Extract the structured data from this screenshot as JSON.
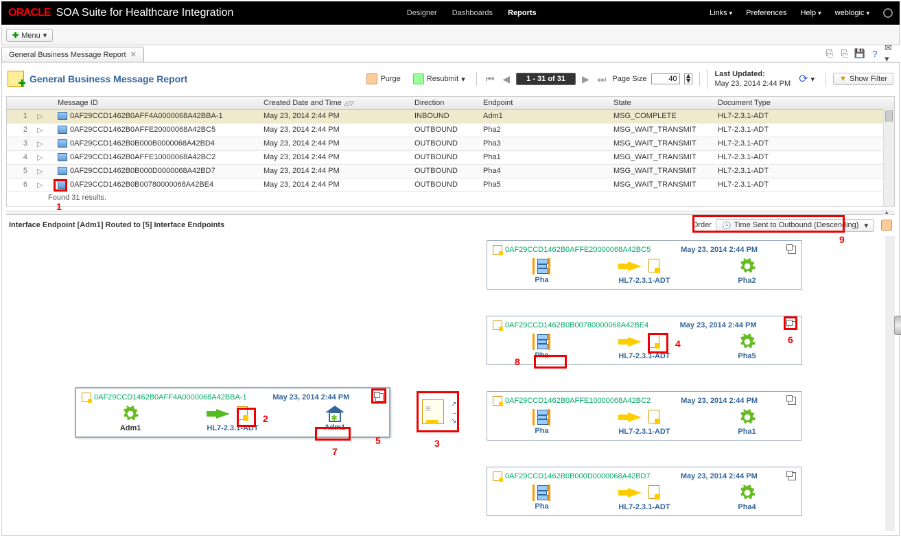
{
  "brand": {
    "logo": "ORACLE",
    "suite": "SOA Suite for Healthcare Integration"
  },
  "topnav": {
    "designer": "Designer",
    "dashboards": "Dashboards",
    "reports": "Reports"
  },
  "topright": {
    "links": "Links",
    "preferences": "Preferences",
    "help": "Help",
    "user": "weblogic"
  },
  "menu": {
    "label": "Menu"
  },
  "tab": {
    "title": "General Business Message Report"
  },
  "report": {
    "title": "General Business Message Report"
  },
  "toolbar": {
    "purge": "Purge",
    "resubmit": "Resubmit",
    "pageRange": "1 - 31 of 31",
    "pageSizeLabel": "Page Size",
    "pageSize": "40",
    "lastUpdatedLabel": "Last Updated:",
    "lastUpdated": "May 23, 2014 2:44 PM",
    "showFilter": "Show Filter"
  },
  "columns": {
    "msgId": "Message ID",
    "created": "Created Date and Time",
    "direction": "Direction",
    "endpoint": "Endpoint",
    "state": "State",
    "docType": "Document Type"
  },
  "rows": [
    {
      "n": "1",
      "id": "0AF29CCD1462B0AFF4A0000068A42BBA-1",
      "created": "May 23, 2014 2:44 PM",
      "dir": "INBOUND",
      "ep": "Adm1",
      "state": "MSG_COMPLETE",
      "doc": "HL7-2.3.1-ADT"
    },
    {
      "n": "2",
      "id": "0AF29CCD1462B0AFFE20000068A42BC5",
      "created": "May 23, 2014 2:44 PM",
      "dir": "OUTBOUND",
      "ep": "Pha2",
      "state": "MSG_WAIT_TRANSMIT",
      "doc": "HL7-2.3.1-ADT"
    },
    {
      "n": "3",
      "id": "0AF29CCD1462B0B000B0000068A42BD4",
      "created": "May 23, 2014 2:44 PM",
      "dir": "OUTBOUND",
      "ep": "Pha3",
      "state": "MSG_WAIT_TRANSMIT",
      "doc": "HL7-2.3.1-ADT"
    },
    {
      "n": "4",
      "id": "0AF29CCD1462B0AFFE10000068A42BC2",
      "created": "May 23, 2014 2:44 PM",
      "dir": "OUTBOUND",
      "ep": "Pha1",
      "state": "MSG_WAIT_TRANSMIT",
      "doc": "HL7-2.3.1-ADT"
    },
    {
      "n": "5",
      "id": "0AF29CCD1462B0B000D0000068A42BD7",
      "created": "May 23, 2014 2:44 PM",
      "dir": "OUTBOUND",
      "ep": "Pha4",
      "state": "MSG_WAIT_TRANSMIT",
      "doc": "HL7-2.3.1-ADT"
    },
    {
      "n": "6",
      "id": "0AF29CCD1462B0B00780000068A42BE4",
      "created": "May 23, 2014 2:44 PM",
      "dir": "OUTBOUND",
      "ep": "Pha5",
      "state": "MSG_WAIT_TRANSMIT",
      "doc": "HL7-2.3.1-ADT"
    }
  ],
  "found": "Found 31 results.",
  "summary": {
    "title": "Interface Endpoint [Adm1] Routed to [5] Interface Endpoints",
    "orderLabel": "Order",
    "orderValue": "Time Sent to Outbound (Descending)"
  },
  "inCard": {
    "id": "0AF29CCD1462B0AFF4A0000068A42BBA-1",
    "date": "May 23, 2014 2:44 PM",
    "src": "Adm1",
    "doc": "HL7-2.3.1-ADT",
    "dest": "Adm1"
  },
  "outCards": [
    {
      "id": "0AF29CCD1462B0AFFE20000068A42BC5",
      "date": "May 23, 2014 2:44 PM",
      "src": "Pha",
      "doc": "HL7-2.3.1-ADT",
      "dest": "Pha2"
    },
    {
      "id": "0AF29CCD1462B0B00780000068A42BE4",
      "date": "May 23, 2014 2:44 PM",
      "src": "Pha",
      "doc": "HL7-2.3.1-ADT",
      "dest": "Pha5"
    },
    {
      "id": "0AF29CCD1462B0AFFE10000068A42BC2",
      "date": "May 23, 2014 2:44 PM",
      "src": "Pha",
      "doc": "HL7-2.3.1-ADT",
      "dest": "Pha1"
    },
    {
      "id": "0AF29CCD1462B0B000D0000068A42BD7",
      "date": "May 23, 2014 2:44 PM",
      "src": "Pha",
      "doc": "HL7-2.3.1-ADT",
      "dest": "Pha4"
    }
  ],
  "annot": {
    "1": "1",
    "2": "2",
    "3": "3",
    "4": "4",
    "5": "5",
    "6": "6",
    "7": "7",
    "8": "8",
    "9": "9"
  },
  "colors": {
    "accent": "#336699",
    "gear": "#66bb22",
    "arrowOut": "#ffcc00",
    "arrowIn": "#55bb22",
    "red": "#ee0000"
  }
}
